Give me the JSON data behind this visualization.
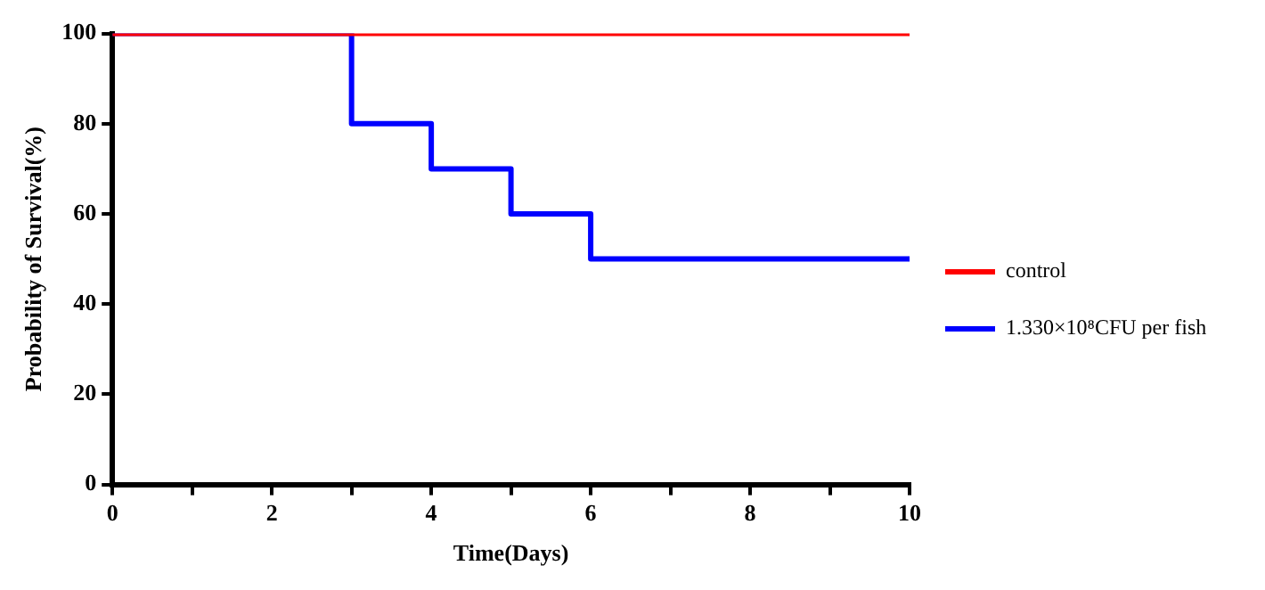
{
  "chart_data": {
    "type": "step",
    "xlabel": "Time(Days)",
    "ylabel": "Probability of Survival(%)",
    "series": [
      {
        "name": "control",
        "color": "#ff0000",
        "x": [
          0,
          10
        ],
        "values": [
          100,
          100
        ]
      },
      {
        "name": "1.330×10⁸CFU per fish",
        "color": "#0000ff",
        "x": [
          0,
          3,
          4,
          5,
          6,
          10
        ],
        "values": [
          100,
          80,
          70,
          60,
          50,
          50
        ]
      }
    ],
    "xlim": [
      0,
      10
    ],
    "xticks": [
      0,
      {
        "value": 1,
        "label": null
      },
      2,
      {
        "value": 3,
        "label": null
      },
      4,
      {
        "value": 5,
        "label": null
      },
      6,
      {
        "value": 7,
        "label": null
      },
      8,
      {
        "value": 9,
        "label": null
      },
      10
    ],
    "ylim": [
      0,
      100
    ],
    "yticks": [
      0,
      20,
      40,
      60,
      80,
      100
    ],
    "grid": false,
    "legend": "right"
  }
}
